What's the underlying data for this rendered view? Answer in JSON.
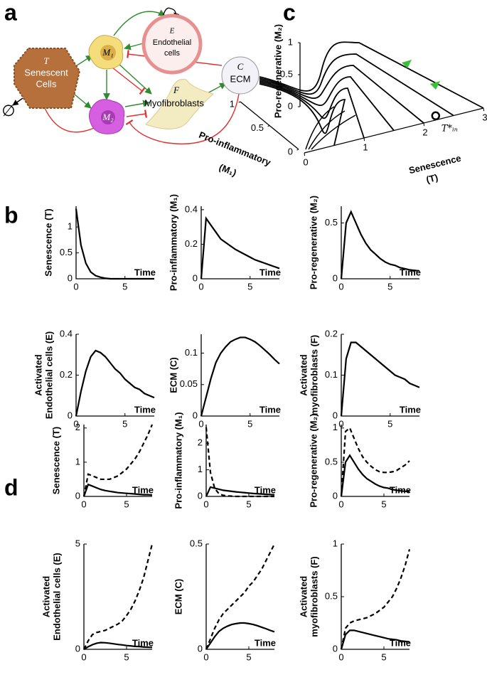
{
  "panel_labels": [
    "a",
    "b",
    "c",
    "d"
  ],
  "diagram": {
    "null_symbol": "∅",
    "nodes": [
      {
        "symbol": "T",
        "label": [
          "Senescent",
          "Cells"
        ]
      },
      {
        "symbol": "M₁"
      },
      {
        "symbol": "M₂"
      },
      {
        "symbol": "E",
        "label": [
          "Endothelial",
          "cells"
        ]
      },
      {
        "symbol": "F",
        "label": [
          "Myofibroblasts"
        ]
      },
      {
        "symbol": "C",
        "label": [
          "ECM"
        ]
      }
    ]
  },
  "chart_data": [
    {
      "type": "line",
      "ylabel": "Senescence (T)",
      "xlabel": "Time",
      "x": [
        0,
        0.5,
        1,
        1.5,
        2,
        2.5,
        3,
        3.5,
        4,
        4.5,
        5,
        5.5,
        6,
        6.5,
        7,
        7.5,
        8
      ],
      "xlim": [
        0,
        8
      ],
      "xticks": [
        0,
        5
      ],
      "ylim": [
        0,
        1.4
      ],
      "yticks": [
        0,
        0.5,
        1
      ],
      "series": [
        {
          "color": "#000000",
          "values": [
            1.35,
            0.65,
            0.3,
            0.13,
            0.06,
            0.03,
            0.01,
            0,
            0,
            0,
            0,
            0,
            0,
            0,
            0,
            0,
            0
          ]
        }
      ]
    },
    {
      "type": "line",
      "ylabel": "Pro-inflammatory (M₁)",
      "xlabel": "Time",
      "x": [
        0,
        0.5,
        1,
        1.5,
        2,
        2.5,
        3,
        3.5,
        4,
        4.5,
        5,
        5.5,
        6,
        6.5,
        7,
        7.5,
        8
      ],
      "xlim": [
        0,
        8
      ],
      "xticks": [
        0,
        5
      ],
      "ylim": [
        0,
        0.42
      ],
      "yticks": [
        0,
        0.2,
        0.4
      ],
      "series": [
        {
          "color": "#000000",
          "values": [
            0,
            0.35,
            0.31,
            0.27,
            0.23,
            0.21,
            0.19,
            0.17,
            0.155,
            0.14,
            0.125,
            0.11,
            0.1,
            0.09,
            0.08,
            0.07,
            0.06
          ]
        }
      ]
    },
    {
      "type": "line",
      "ylabel": "Pro-regenerative (M₂)",
      "xlabel": "Time",
      "x": [
        0,
        0.5,
        1,
        1.5,
        2,
        2.5,
        3,
        3.5,
        4,
        4.5,
        5,
        5.5,
        6,
        6.5,
        7,
        7.5,
        8
      ],
      "xlim": [
        0,
        8
      ],
      "xticks": [
        0,
        5
      ],
      "ylim": [
        0,
        0.65
      ],
      "yticks": [
        0,
        0.5
      ],
      "series": [
        {
          "color": "#000000",
          "values": [
            0,
            0.5,
            0.6,
            0.5,
            0.4,
            0.32,
            0.26,
            0.22,
            0.18,
            0.15,
            0.13,
            0.12,
            0.1,
            0.09,
            0.08,
            0.075,
            0.07
          ]
        }
      ]
    },
    {
      "type": "line",
      "ylabel": [
        "Activated",
        "Endothelial cells (E)"
      ],
      "xlabel": "Time",
      "x": [
        0,
        0.5,
        1,
        1.5,
        2,
        2.5,
        3,
        3.5,
        4,
        4.5,
        5,
        5.5,
        6,
        6.5,
        7,
        7.5,
        8
      ],
      "xlim": [
        0,
        8
      ],
      "xticks": [
        0,
        5
      ],
      "ylim": [
        0,
        0.4
      ],
      "yticks": [
        0,
        0.2,
        0.4
      ],
      "series": [
        {
          "color": "#000000",
          "values": [
            0,
            0.12,
            0.22,
            0.29,
            0.32,
            0.31,
            0.29,
            0.26,
            0.23,
            0.21,
            0.18,
            0.16,
            0.14,
            0.13,
            0.11,
            0.1,
            0.09
          ]
        }
      ]
    },
    {
      "type": "line",
      "ylabel": "ECM (C)",
      "xlabel": "Time",
      "x": [
        0,
        0.5,
        1,
        1.5,
        2,
        2.5,
        3,
        3.5,
        4,
        4.5,
        5,
        5.5,
        6,
        6.5,
        7,
        7.5,
        8
      ],
      "xlim": [
        0,
        8
      ],
      "xticks": [
        0,
        5
      ],
      "ylim": [
        0,
        0.13
      ],
      "yticks": [
        0,
        0.05,
        0.1
      ],
      "series": [
        {
          "color": "#000000",
          "values": [
            0,
            0.03,
            0.06,
            0.085,
            0.1,
            0.11,
            0.118,
            0.122,
            0.125,
            0.125,
            0.122,
            0.118,
            0.112,
            0.105,
            0.098,
            0.09,
            0.083
          ]
        }
      ]
    },
    {
      "type": "line",
      "ylabel": [
        "Activated",
        "myofibroblasts (F)"
      ],
      "xlabel": "Time",
      "x": [
        0,
        0.5,
        1,
        1.5,
        2,
        2.5,
        3,
        3.5,
        4,
        4.5,
        5,
        5.5,
        6,
        6.5,
        7,
        7.5,
        8
      ],
      "xlim": [
        0,
        8
      ],
      "xticks": [
        0,
        5
      ],
      "ylim": [
        0,
        0.2
      ],
      "yticks": [
        0,
        0.1,
        0.2
      ],
      "series": [
        {
          "color": "#000000",
          "values": [
            0,
            0.14,
            0.18,
            0.18,
            0.17,
            0.16,
            0.15,
            0.14,
            0.13,
            0.12,
            0.11,
            0.1,
            0.095,
            0.09,
            0.08,
            0.075,
            0.07
          ]
        }
      ]
    },
    {
      "type": "line",
      "ylabel": "Senescence (T)",
      "xlabel": "Time",
      "x": [
        0,
        0.5,
        1,
        1.5,
        2,
        2.5,
        3,
        3.5,
        4,
        4.5,
        5,
        5.5,
        6,
        6.5,
        7,
        7.5,
        8
      ],
      "xlim": [
        0,
        8
      ],
      "xticks": [
        0,
        5
      ],
      "ylim": [
        0,
        2.1
      ],
      "yticks": [
        0,
        1,
        2
      ],
      "series": [
        {
          "color": "#000000",
          "values": [
            0,
            0.35,
            0.3,
            0.25,
            0.2,
            0.17,
            0.15,
            0.13,
            0.11,
            0.1,
            0.09,
            0.08,
            0.07,
            0.06,
            0.05,
            0.05,
            0.04
          ]
        },
        {
          "color": "#000000",
          "dash": true,
          "values": [
            0,
            0.65,
            0.6,
            0.55,
            0.5,
            0.5,
            0.5,
            0.55,
            0.6,
            0.7,
            0.8,
            0.95,
            1.1,
            1.3,
            1.55,
            1.8,
            2.1
          ]
        }
      ]
    },
    {
      "type": "line",
      "ylabel": "Pro-inflammatory (M₁)",
      "xlabel": "Time",
      "x": [
        0,
        0.5,
        1,
        1.5,
        2,
        2.5,
        3,
        3.5,
        4,
        4.5,
        5,
        5.5,
        6,
        6.5,
        7,
        7.5,
        8
      ],
      "xlim": [
        0,
        8
      ],
      "xticks": [
        0,
        5
      ],
      "ylim": [
        0,
        2.7
      ],
      "yticks": [
        0,
        1,
        2
      ],
      "series": [
        {
          "color": "#000000",
          "values": [
            0,
            0.35,
            0.31,
            0.27,
            0.23,
            0.21,
            0.19,
            0.17,
            0.155,
            0.14,
            0.125,
            0.11,
            0.1,
            0.09,
            0.08,
            0.07,
            0.06
          ]
        },
        {
          "color": "#000000",
          "dash": true,
          "values": [
            2.6,
            0.9,
            0.3,
            0.1,
            0.04,
            0.02,
            0.01,
            0,
            0,
            0,
            0,
            0,
            0,
            0,
            0,
            0,
            0
          ]
        }
      ]
    },
    {
      "type": "line",
      "ylabel": "Pro-regenerative (M₂)",
      "xlabel": "Time",
      "x": [
        0,
        0.5,
        1,
        1.5,
        2,
        2.5,
        3,
        3.5,
        4,
        4.5,
        5,
        5.5,
        6,
        6.5,
        7,
        7.5,
        8
      ],
      "xlim": [
        0,
        8
      ],
      "xticks": [
        0,
        5
      ],
      "ylim": [
        0,
        1.05
      ],
      "yticks": [
        0,
        0.5,
        1
      ],
      "series": [
        {
          "color": "#000000",
          "values": [
            0,
            0.5,
            0.6,
            0.5,
            0.4,
            0.32,
            0.26,
            0.22,
            0.18,
            0.15,
            0.13,
            0.12,
            0.1,
            0.09,
            0.08,
            0.075,
            0.07
          ]
        },
        {
          "color": "#000000",
          "dash": true,
          "values": [
            0,
            0.95,
            1.0,
            0.85,
            0.7,
            0.58,
            0.5,
            0.44,
            0.39,
            0.36,
            0.35,
            0.35,
            0.36,
            0.38,
            0.42,
            0.46,
            0.52
          ]
        }
      ]
    },
    {
      "type": "line",
      "ylabel": [
        "Activated",
        "Endothelial cells (E)"
      ],
      "xlabel": "Time",
      "x": [
        0,
        0.5,
        1,
        1.5,
        2,
        2.5,
        3,
        3.5,
        4,
        4.5,
        5,
        5.5,
        6,
        6.5,
        7,
        7.5,
        8
      ],
      "xlim": [
        0,
        8
      ],
      "xticks": [
        0,
        5
      ],
      "ylim": [
        0,
        5
      ],
      "yticks": [
        0,
        5
      ],
      "series": [
        {
          "color": "#000000",
          "values": [
            0,
            0.12,
            0.22,
            0.29,
            0.32,
            0.31,
            0.29,
            0.26,
            0.23,
            0.21,
            0.18,
            0.16,
            0.14,
            0.13,
            0.11,
            0.1,
            0.09
          ]
        },
        {
          "color": "#000000",
          "dash": true,
          "values": [
            0,
            0.4,
            0.7,
            0.8,
            0.85,
            0.9,
            1.0,
            1.1,
            1.2,
            1.35,
            1.6,
            1.9,
            2.3,
            2.8,
            3.4,
            4.2,
            5.0
          ]
        }
      ]
    },
    {
      "type": "line",
      "ylabel": "ECM (C)",
      "xlabel": "Time",
      "x": [
        0,
        0.5,
        1,
        1.5,
        2,
        2.5,
        3,
        3.5,
        4,
        4.5,
        5,
        5.5,
        6,
        6.5,
        7,
        7.5,
        8
      ],
      "xlim": [
        0,
        8
      ],
      "xticks": [
        0,
        5
      ],
      "ylim": [
        0,
        0.5
      ],
      "yticks": [
        0,
        0.5
      ],
      "series": [
        {
          "color": "#000000",
          "values": [
            0,
            0.03,
            0.06,
            0.085,
            0.1,
            0.11,
            0.118,
            0.122,
            0.125,
            0.125,
            0.122,
            0.118,
            0.112,
            0.105,
            0.098,
            0.09,
            0.083
          ]
        },
        {
          "color": "#000000",
          "dash": true,
          "values": [
            0,
            0.05,
            0.1,
            0.14,
            0.17,
            0.19,
            0.21,
            0.23,
            0.25,
            0.27,
            0.3,
            0.32,
            0.35,
            0.38,
            0.42,
            0.46,
            0.5
          ]
        }
      ]
    },
    {
      "type": "line",
      "ylabel": [
        "Activated",
        "myofibroblasts (F)"
      ],
      "xlabel": "Time",
      "x": [
        0,
        0.5,
        1,
        1.5,
        2,
        2.5,
        3,
        3.5,
        4,
        4.5,
        5,
        5.5,
        6,
        6.5,
        7,
        7.5,
        8
      ],
      "xlim": [
        0,
        8
      ],
      "xticks": [
        0,
        5
      ],
      "ylim": [
        0,
        1
      ],
      "yticks": [
        0,
        0.5,
        1
      ],
      "series": [
        {
          "color": "#000000",
          "values": [
            0,
            0.14,
            0.18,
            0.18,
            0.17,
            0.16,
            0.15,
            0.14,
            0.13,
            0.12,
            0.11,
            0.1,
            0.095,
            0.09,
            0.08,
            0.075,
            0.07
          ]
        },
        {
          "color": "#000000",
          "dash": true,
          "values": [
            0,
            0.2,
            0.25,
            0.27,
            0.28,
            0.29,
            0.3,
            0.32,
            0.34,
            0.37,
            0.4,
            0.45,
            0.5,
            0.58,
            0.68,
            0.8,
            0.95
          ]
        }
      ]
    },
    {
      "type": "phase3d",
      "xlabel": [
        "Senescence",
        "(T)"
      ],
      "ylabel": [
        "Pro-inflammatory",
        "(M₁)"
      ],
      "zlabel": "Pro-regenerative (M₂)",
      "annotation": "T*ᵢₙ",
      "xlim": [
        0,
        3
      ],
      "xticks": [
        0,
        1,
        2,
        3
      ],
      "ylim": [
        0,
        1
      ],
      "yticks": [
        0,
        0.5,
        1
      ],
      "zlim": [
        0,
        1
      ],
      "zticks": [
        0,
        0.5,
        1
      ],
      "arrow_color": "#3cc03c"
    }
  ]
}
